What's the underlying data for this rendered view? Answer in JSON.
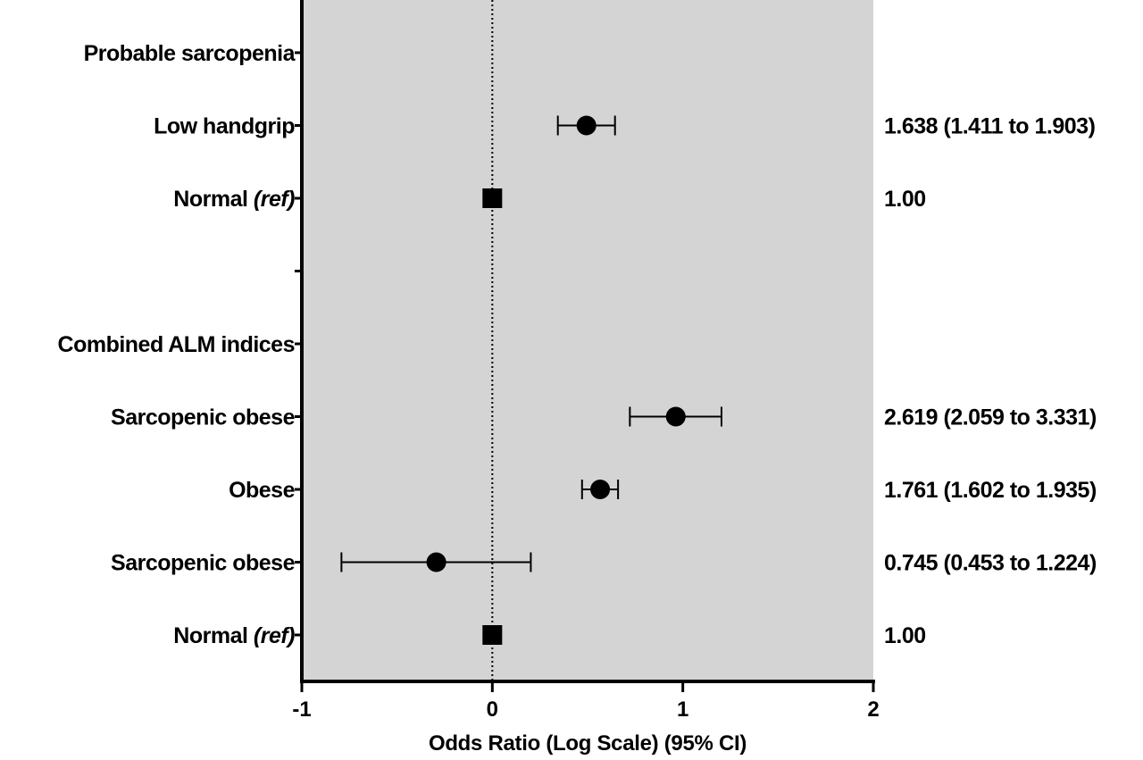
{
  "chart_data": {
    "type": "forest",
    "xlabel": "Odds Ratio (Log Scale) (95% CI)",
    "xlim": [
      -1,
      2
    ],
    "xticks": [
      -1,
      0,
      1,
      2
    ],
    "reference_line": 0,
    "background": "#d4d4d4",
    "rows": [
      {
        "label": "Probable sarcopenia",
        "header": true
      },
      {
        "label": "Low handgrip",
        "marker": "circle",
        "value": 0.494,
        "ci": [
          0.344,
          0.644
        ],
        "or_text": "1.638 (1.411 to 1.903)"
      },
      {
        "label": "Normal",
        "label_suffix": "(ref)",
        "marker": "square",
        "value": 0,
        "ci": null,
        "or_text": "1.00"
      },
      {
        "label": "",
        "spacer": true
      },
      {
        "label": "Combined ALM indices",
        "header": true
      },
      {
        "label": "Sarcopenic obese",
        "marker": "circle",
        "value": 0.963,
        "ci": [
          0.722,
          1.203
        ],
        "or_text": "2.619 (2.059 to 3.331)"
      },
      {
        "label": "Obese",
        "marker": "circle",
        "value": 0.566,
        "ci": [
          0.471,
          0.66
        ],
        "or_text": "1.761 (1.602 to 1.935)"
      },
      {
        "label": "Sarcopenic obese",
        "marker": "circle",
        "value": -0.294,
        "ci": [
          -0.792,
          0.202
        ],
        "or_text": "0.745 (0.453 to 1.224)"
      },
      {
        "label": "Normal",
        "label_suffix": "(ref)",
        "marker": "square",
        "value": 0,
        "ci": null,
        "or_text": "1.00"
      }
    ]
  }
}
